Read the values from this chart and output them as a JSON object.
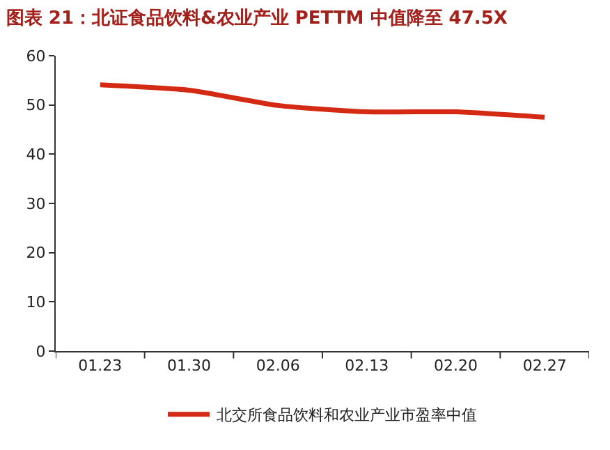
{
  "chart_data": {
    "type": "line",
    "title": "图表 21：北证食品饮料&农业产业 PETTM 中值降至 47.5X",
    "categories": [
      "01.23",
      "01.30",
      "02.06",
      "02.13",
      "02.20",
      "02.27"
    ],
    "series": [
      {
        "name": "北交所食品饮料和农业产业市盈率中值",
        "color": "#d42a14",
        "values": [
          54.1,
          53.0,
          49.9,
          48.6,
          48.6,
          47.5
        ]
      }
    ],
    "ylim": [
      0,
      60
    ],
    "yticks": [
      0,
      10,
      20,
      30,
      40,
      50,
      60
    ],
    "legend": "bottom",
    "marker": "none",
    "line_style": "solid"
  }
}
